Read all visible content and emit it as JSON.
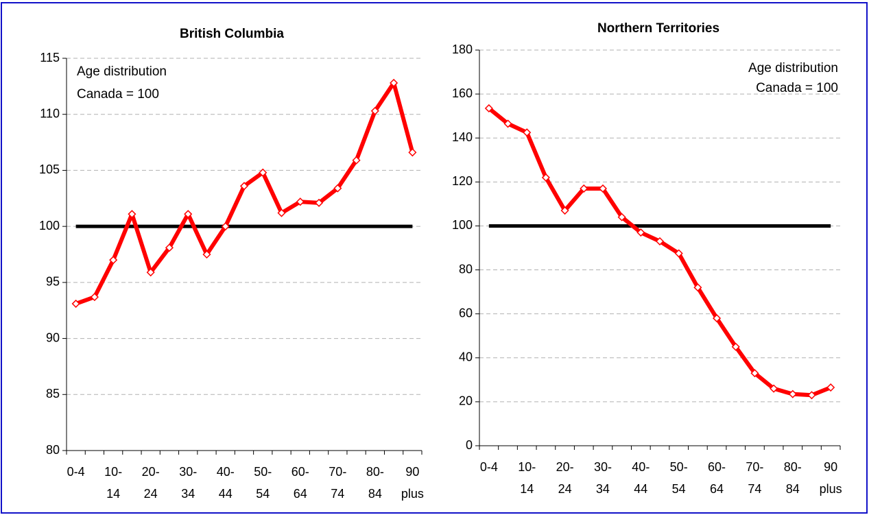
{
  "chart_data": [
    {
      "type": "line",
      "title": "British Columbia",
      "annotations": [
        "Age distribution",
        "Canada = 100"
      ],
      "annotation_corner": "top-left",
      "categories": [
        "0-4",
        null,
        "10-\n14",
        null,
        "20-\n24",
        null,
        "30-\n34",
        null,
        "40-\n44",
        null,
        "50-\n54",
        null,
        "60-\n64",
        null,
        "70-\n74",
        null,
        "80-\n84",
        null,
        "90\nplus"
      ],
      "series": [
        {
          "color": "#ff0000",
          "marker": "diamond",
          "values": [
            93.1,
            93.7,
            97.0,
            101.1,
            95.9,
            98.1,
            101.1,
            97.5,
            100.0,
            103.6,
            104.8,
            101.2,
            102.2,
            102.1,
            103.4,
            105.9,
            110.3,
            112.8,
            106.6
          ]
        },
        {
          "color": "#000000",
          "marker": "none",
          "values": [
            100,
            100,
            100,
            100,
            100,
            100,
            100,
            100,
            100,
            100,
            100,
            100,
            100,
            100,
            100,
            100,
            100,
            100,
            100
          ]
        }
      ],
      "ylim": [
        80,
        115
      ],
      "yticks": [
        80,
        85,
        90,
        95,
        100,
        105,
        110,
        115
      ],
      "grid": true
    },
    {
      "type": "line",
      "title": "Northern Territories",
      "annotations": [
        "Age distribution",
        "Canada = 100"
      ],
      "annotation_corner": "top-right",
      "categories": [
        "0-4",
        null,
        "10-\n14",
        null,
        "20-\n24",
        null,
        "30-\n34",
        null,
        "40-\n44",
        null,
        "50-\n54",
        null,
        "60-\n64",
        null,
        "70-\n74",
        null,
        "80-\n84",
        null,
        "90\nplus"
      ],
      "series": [
        {
          "color": "#ff0000",
          "marker": "diamond",
          "values": [
            153.5,
            146.5,
            142.5,
            122,
            107,
            117,
            117,
            104,
            97,
            93,
            87.5,
            72,
            58,
            45,
            33,
            26,
            23.5,
            23,
            26.5
          ]
        },
        {
          "color": "#000000",
          "marker": "none",
          "values": [
            100,
            100,
            100,
            100,
            100,
            100,
            100,
            100,
            100,
            100,
            100,
            100,
            100,
            100,
            100,
            100,
            100,
            100,
            100
          ]
        }
      ],
      "ylim": [
        0,
        180
      ],
      "yticks": [
        0,
        20,
        40,
        60,
        80,
        100,
        120,
        140,
        160,
        180
      ],
      "grid": true
    }
  ]
}
